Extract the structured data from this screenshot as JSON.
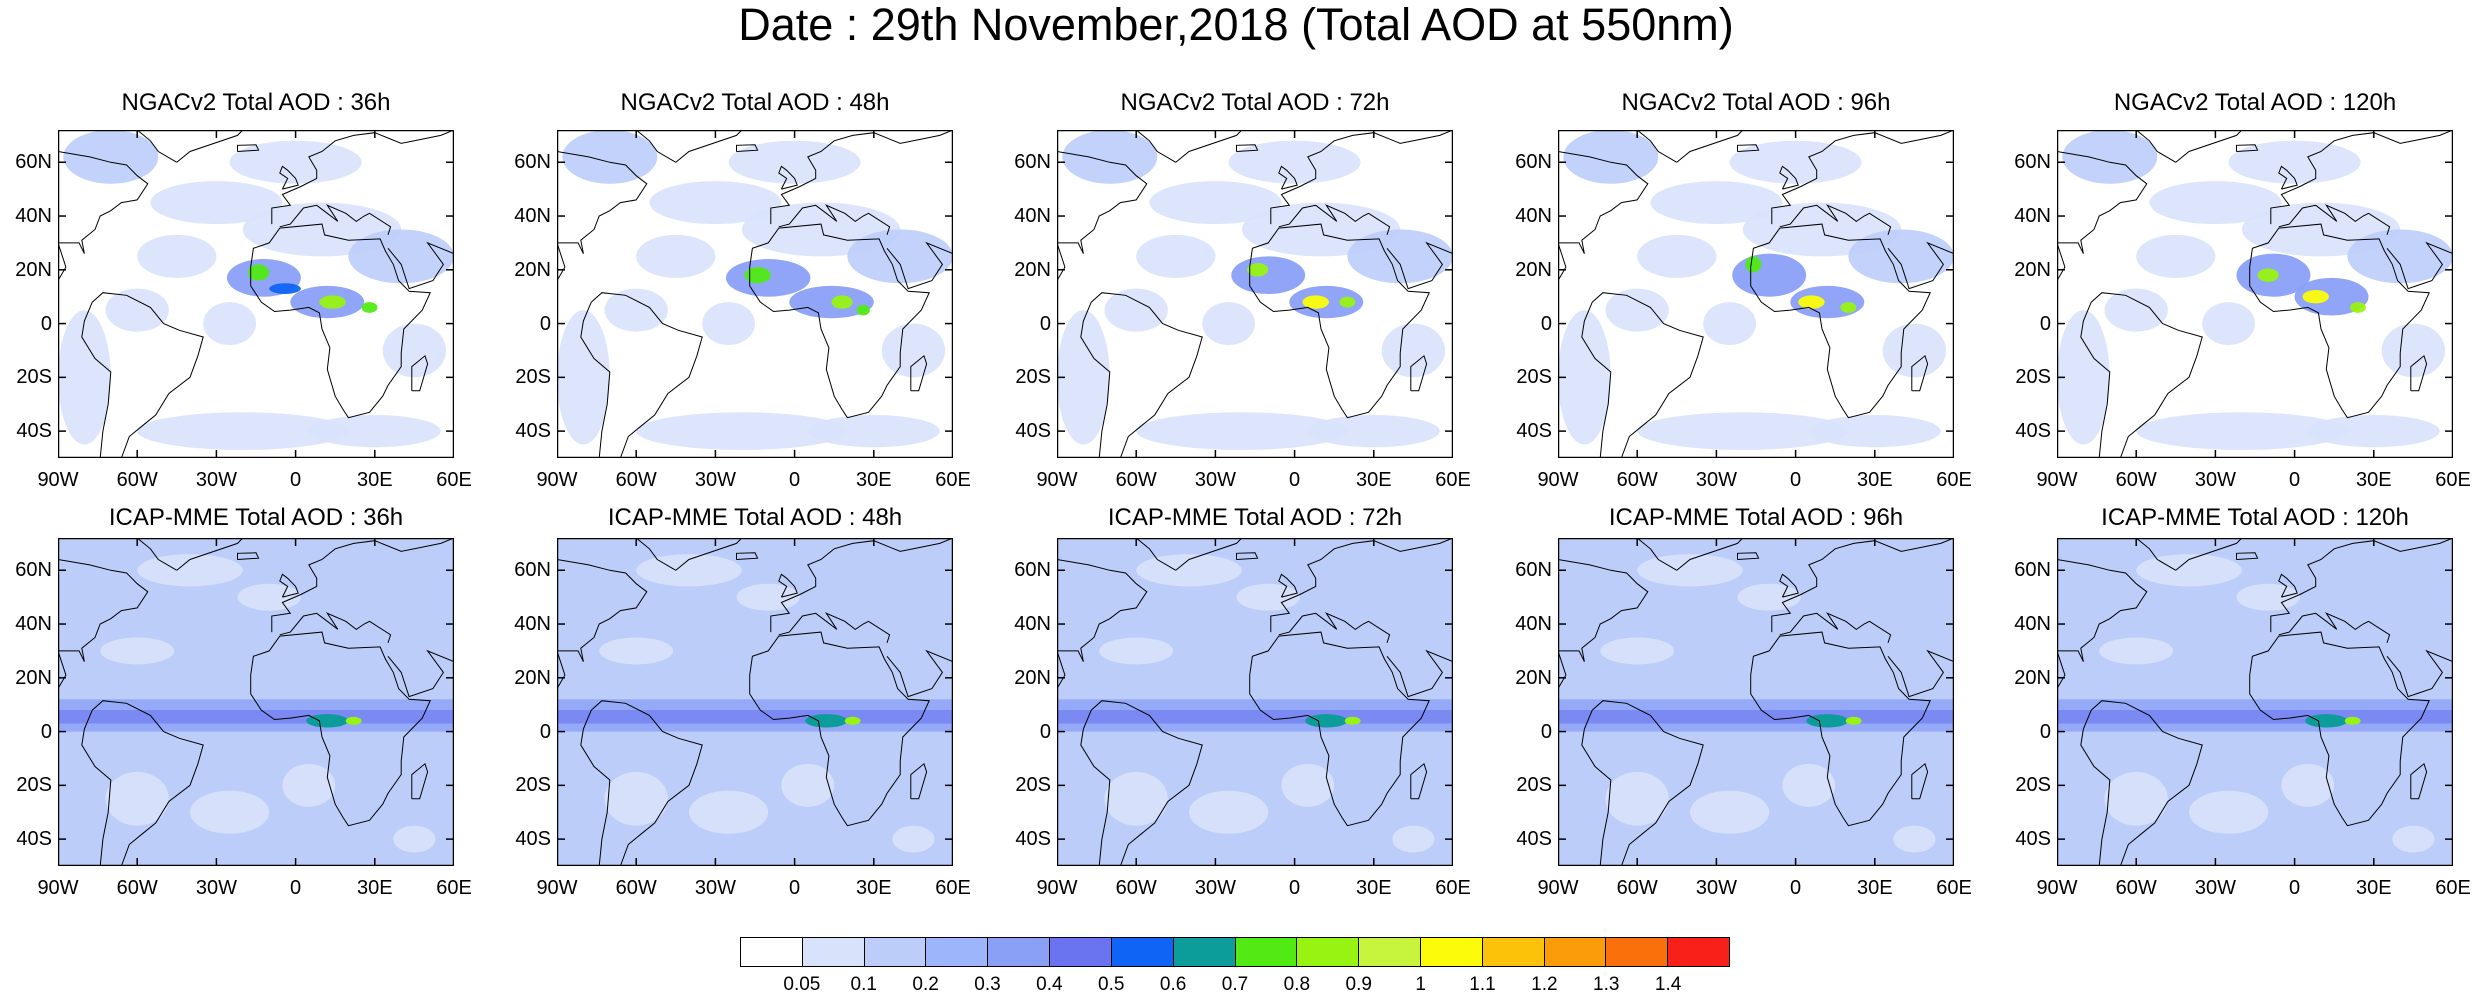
{
  "title": "Date : 29th November,2018 (Total AOD at 550nm)",
  "map_panels": [
    {
      "title": "NGACv2 Total AOD : 36h"
    },
    {
      "title": "NGACv2 Total AOD : 48h"
    },
    {
      "title": "NGACv2 Total AOD : 72h"
    },
    {
      "title": "NGACv2 Total AOD : 96h"
    },
    {
      "title": "NGACv2 Total AOD : 120h"
    },
    {
      "title": "ICAP-MME Total AOD : 36h"
    },
    {
      "title": "ICAP-MME Total AOD : 48h"
    },
    {
      "title": "ICAP-MME Total AOD : 72h"
    },
    {
      "title": "ICAP-MME Total AOD : 96h"
    },
    {
      "title": "ICAP-MME Total AOD : 120h"
    }
  ],
  "lat_ticks": [
    "60N",
    "40N",
    "20N",
    "0",
    "20S",
    "40S"
  ],
  "lon_ticks": [
    "90W",
    "60W",
    "30W",
    "0",
    "30E",
    "60E"
  ],
  "colorbar": {
    "colors": [
      "#ffffff",
      "#d8e2fb",
      "#bdcdfa",
      "#9db6fb",
      "#8aa0f7",
      "#6a74f0",
      "#0f64f5",
      "#0c9c9a",
      "#51ea14",
      "#98f312",
      "#c7f53e",
      "#fcfc0a",
      "#fcc20a",
      "#fb9d0a",
      "#fa710b",
      "#f9201a"
    ],
    "labels": [
      "0.05",
      "0.1",
      "0.2",
      "0.3",
      "0.4",
      "0.5",
      "0.6",
      "0.7",
      "0.8",
      "0.9",
      "1",
      "1.1",
      "1.2",
      "1.3",
      "1.4"
    ]
  }
}
